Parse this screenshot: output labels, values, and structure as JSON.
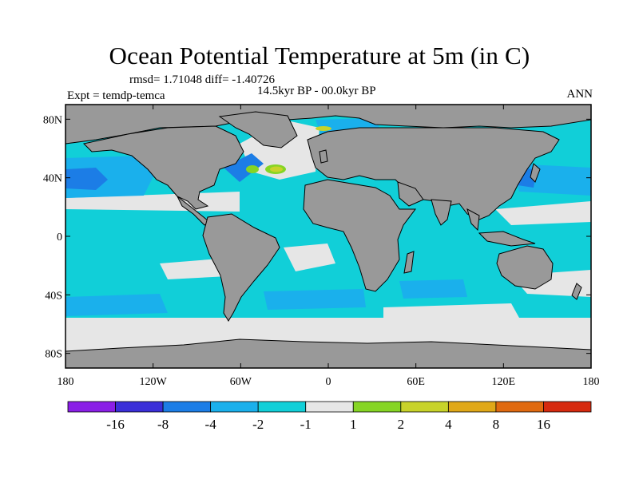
{
  "title": "Ocean Potential Temperature at 5m (in C)",
  "stats": "rmsd= 1.71048 diff= -1.40726",
  "expt": "Expt = temdp-temca",
  "period": "14.5kyr BP - 00.0kyr BP",
  "season": "ANN",
  "colors": {
    "land": "#999999",
    "neutral": "#e6e6e6",
    "cyan": "#11cfd8",
    "lightblue": "#1ab0ec",
    "blue": "#1c7de6",
    "green": "#86d524",
    "yellowgreen": "#c8d32a"
  },
  "chart_data": {
    "type": "heatmap",
    "projection": "cylindrical-equidistant",
    "x_ticks": [
      "180",
      "120W",
      "60W",
      "0",
      "60E",
      "120E",
      "180"
    ],
    "y_ticks": [
      "80N",
      "40N",
      "0",
      "40S",
      "80S"
    ],
    "xlim": [
      -180,
      180
    ],
    "ylim": [
      -90,
      90
    ],
    "colorbar": {
      "boundaries": [
        "-16",
        "-8",
        "-4",
        "-2",
        "-1",
        "1",
        "2",
        "4",
        "8",
        "16"
      ],
      "colors": [
        "#8a1fe6",
        "#3a2fd8",
        "#1c7de6",
        "#1ab0ec",
        "#11cfd8",
        "#e6e6e6",
        "#86d524",
        "#c8d32a",
        "#e0a818",
        "#e06a10",
        "#d62a0f"
      ]
    }
  }
}
